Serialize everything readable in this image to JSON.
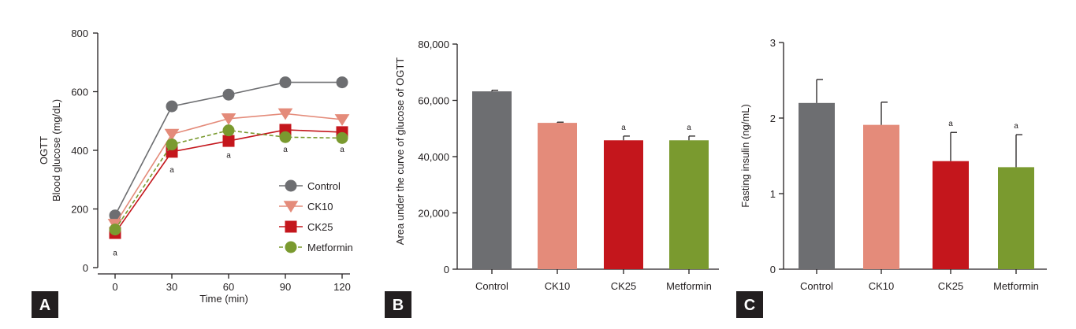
{
  "chart_data": [
    {
      "panel": "A",
      "type": "line",
      "ylabel_line1": "OGTT",
      "ylabel_line2": "Blood glucose (mg/dL)",
      "xlabel": "Time (min)",
      "x": [
        0,
        30,
        60,
        90,
        120
      ],
      "x_ticks": [
        "0",
        "30",
        "60",
        "90",
        "120"
      ],
      "y_ticks": [
        "0",
        "200",
        "400",
        "600",
        "800"
      ],
      "ylim": [
        0,
        800
      ],
      "legend_position": "bottom-right",
      "series": [
        {
          "name": "Control",
          "marker": "circle",
          "color": "#6d6e71",
          "dashed": false,
          "values": [
            178,
            550,
            590,
            632,
            632
          ]
        },
        {
          "name": "CK10",
          "marker": "triangle-down",
          "color": "#e48b7a",
          "dashed": false,
          "values": [
            148,
            455,
            508,
            525,
            505
          ]
        },
        {
          "name": "CK25",
          "marker": "square",
          "color": "#c4161c",
          "dashed": false,
          "values": [
            118,
            395,
            432,
            470,
            462
          ]
        },
        {
          "name": "Metformin",
          "marker": "circle",
          "color": "#7a9a2f",
          "dashed": true,
          "values": [
            130,
            420,
            468,
            445,
            442
          ]
        }
      ],
      "annotations": [
        {
          "x": 0,
          "y": 52,
          "text": "a"
        },
        {
          "x": 30,
          "y": 335,
          "text": "a"
        },
        {
          "x": 60,
          "y": 385,
          "text": "a"
        },
        {
          "x": 90,
          "y": 405,
          "text": "a"
        },
        {
          "x": 120,
          "y": 405,
          "text": "a"
        }
      ]
    },
    {
      "panel": "B",
      "type": "bar",
      "ylabel": "Area under the curve of glucose of OGTT",
      "categories": [
        "Control",
        "CK10",
        "CK25",
        "Metformin"
      ],
      "values": [
        63200,
        52000,
        45800,
        45800
      ],
      "errors": [
        400,
        250,
        1500,
        1500
      ],
      "colors": [
        "#6d6e71",
        "#e48b7a",
        "#c4161c",
        "#7a9a2f"
      ],
      "significance": [
        "",
        "",
        "a",
        "a"
      ],
      "y_ticks": [
        "0",
        "20,000",
        "40,000",
        "60,000",
        "80,000"
      ],
      "ylim": [
        0,
        80000
      ]
    },
    {
      "panel": "C",
      "type": "bar",
      "ylabel": "Fasting insulin (ng/mL)",
      "categories": [
        "Control",
        "CK10",
        "CK25",
        "Metformin"
      ],
      "values": [
        2.2,
        1.91,
        1.43,
        1.35
      ],
      "errors": [
        0.31,
        0.3,
        0.38,
        0.43
      ],
      "colors": [
        "#6d6e71",
        "#e48b7a",
        "#c4161c",
        "#7a9a2f"
      ],
      "significance": [
        "",
        "",
        "a",
        "a"
      ],
      "y_ticks": [
        "0",
        "1",
        "2",
        "3"
      ],
      "ylim": [
        0,
        3
      ]
    }
  ]
}
